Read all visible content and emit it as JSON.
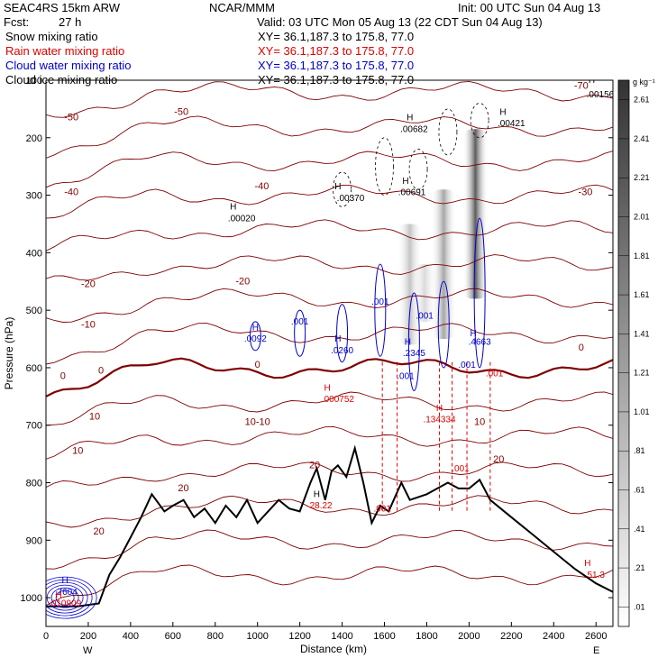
{
  "header": {
    "model": "SEAC4RS 15km ARW",
    "org": "NCAR/MMM",
    "init": "Init: 00 UTC Sun 04 Aug 13",
    "fcst_label": "Fcst:",
    "fcst_value": "27 h",
    "valid": "Valid: 03 UTC Mon 05 Aug 13 (22 CDT Sun 04 Aug 13)"
  },
  "legend": [
    {
      "label": "Snow mixing ratio",
      "xy": "XY=  36.1,187.3 to 175.8, 77.0",
      "color": "#000000"
    },
    {
      "label": "Rain water mixing ratio",
      "xy": "XY=  36.1,187.3 to 175.8, 77.0",
      "color": "#dd0000"
    },
    {
      "label": "Cloud water mixing ratio",
      "xy": "XY=  36.1,187.3 to 175.8, 77.0",
      "color": "#0000cc"
    },
    {
      "label": "Cloud ice mixing ratio",
      "xy": "XY=  36.1,187.3 to 175.8, 77.0",
      "color": "#000000"
    }
  ],
  "chart_data": {
    "type": "cross-section",
    "xlabel": "Distance (km)",
    "ylabel": "Pressure (hPa)",
    "xlim": [
      0,
      2680
    ],
    "ylim": [
      1050,
      100
    ],
    "x_ticks": [
      0,
      200,
      400,
      600,
      800,
      1000,
      1200,
      1400,
      1600,
      1800,
      2000,
      2200,
      2400,
      2600
    ],
    "y_ticks": [
      100,
      200,
      300,
      400,
      500,
      600,
      700,
      800,
      900,
      1000
    ],
    "west_label": "W",
    "east_label": "E",
    "colorbar": {
      "unit": "g kg⁻¹",
      "ticks": [
        ".01",
        ".21",
        ".41",
        ".61",
        ".81",
        "1.01",
        "1.21",
        "1.41",
        "1.61",
        "1.81",
        "2.01",
        "2.21",
        "2.41",
        "2.61"
      ],
      "low_color": "#ffffff",
      "high_color": "#333333"
    },
    "terrain_pressure": [
      [
        0,
        1015
      ],
      [
        150,
        1015
      ],
      [
        250,
        1010
      ],
      [
        300,
        960
      ],
      [
        350,
        930
      ],
      [
        400,
        895
      ],
      [
        450,
        860
      ],
      [
        500,
        820
      ],
      [
        560,
        850
      ],
      [
        600,
        840
      ],
      [
        650,
        830
      ],
      [
        700,
        860
      ],
      [
        750,
        845
      ],
      [
        800,
        870
      ],
      [
        850,
        840
      ],
      [
        900,
        860
      ],
      [
        950,
        830
      ],
      [
        1000,
        870
      ],
      [
        1050,
        850
      ],
      [
        1100,
        830
      ],
      [
        1150,
        845
      ],
      [
        1200,
        850
      ],
      [
        1250,
        800
      ],
      [
        1280,
        775
      ],
      [
        1320,
        830
      ],
      [
        1350,
        780
      ],
      [
        1380,
        770
      ],
      [
        1420,
        790
      ],
      [
        1460,
        740
      ],
      [
        1500,
        800
      ],
      [
        1540,
        870
      ],
      [
        1580,
        840
      ],
      [
        1620,
        850
      ],
      [
        1680,
        800
      ],
      [
        1720,
        830
      ],
      [
        1800,
        820
      ],
      [
        1850,
        810
      ],
      [
        1900,
        800
      ],
      [
        1950,
        810
      ],
      [
        2000,
        810
      ],
      [
        2050,
        795
      ],
      [
        2100,
        830
      ],
      [
        2200,
        860
      ],
      [
        2300,
        890
      ],
      [
        2400,
        920
      ],
      [
        2500,
        950
      ],
      [
        2600,
        975
      ],
      [
        2680,
        990
      ]
    ],
    "isotherm_labels": [
      {
        "x": 120,
        "p": 170,
        "t": "-50"
      },
      {
        "x": 120,
        "p": 300,
        "t": "-40"
      },
      {
        "x": 200,
        "p": 460,
        "t": "-20"
      },
      {
        "x": 200,
        "p": 530,
        "t": "-10"
      },
      {
        "x": 80,
        "p": 620,
        "t": "0"
      },
      {
        "x": 260,
        "p": 610,
        "t": "0"
      },
      {
        "x": 230,
        "p": 690,
        "t": "10"
      },
      {
        "x": 150,
        "p": 750,
        "t": "10"
      },
      {
        "x": 640,
        "p": 160,
        "t": "-50"
      },
      {
        "x": 1020,
        "p": 290,
        "t": "-40"
      },
      {
        "x": 930,
        "p": 455,
        "t": "-20"
      },
      {
        "x": 1000,
        "p": 600,
        "t": "0"
      },
      {
        "x": 1000,
        "p": 700,
        "t": "10-10"
      },
      {
        "x": 1270,
        "p": 775,
        "t": "20"
      },
      {
        "x": 650,
        "p": 815,
        "t": "20"
      },
      {
        "x": 250,
        "p": 890,
        "t": "20"
      },
      {
        "x": 2050,
        "p": 700,
        "t": "10"
      },
      {
        "x": 2140,
        "p": 765,
        "t": "20"
      },
      {
        "x": 2530,
        "p": 570,
        "t": "0"
      },
      {
        "x": 2550,
        "p": 300,
        "t": "-30"
      },
      {
        "x": 2530,
        "p": 115,
        "t": "-70"
      }
    ],
    "snow_columns": [
      {
        "x": 1720,
        "ptop": 350,
        "pbot": 560,
        "peak": 0.8
      },
      {
        "x": 1880,
        "ptop": 290,
        "pbot": 550,
        "peak": 1.2
      },
      {
        "x": 2030,
        "ptop": 185,
        "pbot": 480,
        "peak": 2.2
      },
      {
        "x": 1790,
        "ptop": 420,
        "pbot": 520,
        "peak": 0.5
      }
    ],
    "labels": [
      {
        "x": 2620,
        "p": 130,
        "t": ".00156",
        "color": "#000000"
      },
      {
        "x": 2580,
        "p": 105,
        "t": "H",
        "color": "#000000"
      },
      {
        "x": 2200,
        "p": 180,
        "t": ".00421",
        "color": "#000000"
      },
      {
        "x": 2160,
        "p": 160,
        "t": "H",
        "color": "#000000"
      },
      {
        "x": 1740,
        "p": 190,
        "t": ".00682",
        "color": "#000000"
      },
      {
        "x": 1720,
        "p": 170,
        "t": "H",
        "color": "#000000"
      },
      {
        "x": 1440,
        "p": 310,
        "t": ".00370",
        "color": "#000000"
      },
      {
        "x": 1380,
        "p": 290,
        "t": "H",
        "color": "#000000"
      },
      {
        "x": 1730,
        "p": 300,
        "t": ".00691",
        "color": "#000000"
      },
      {
        "x": 1700,
        "p": 280,
        "t": "H",
        "color": "#000000"
      },
      {
        "x": 925,
        "p": 345,
        "t": ".00020",
        "color": "#000000"
      },
      {
        "x": 885,
        "p": 325,
        "t": "H",
        "color": "#000000"
      },
      {
        "x": 1580,
        "p": 490,
        "t": ".001",
        "color": "#0000cc"
      },
      {
        "x": 1790,
        "p": 515,
        "t": ".001",
        "color": "#0000cc"
      },
      {
        "x": 1200,
        "p": 525,
        "t": ".001",
        "color": "#0000cc"
      },
      {
        "x": 990,
        "p": 555,
        "t": ".0092",
        "color": "#0000cc"
      },
      {
        "x": 990,
        "p": 535,
        "t": "H",
        "color": "#0000cc"
      },
      {
        "x": 1400,
        "p": 575,
        "t": ".0260",
        "color": "#0000cc"
      },
      {
        "x": 1380,
        "p": 555,
        "t": "H",
        "color": "#0000cc"
      },
      {
        "x": 1740,
        "p": 580,
        "t": ".2345",
        "color": "#0000cc"
      },
      {
        "x": 1710,
        "p": 560,
        "t": "H",
        "color": "#0000cc"
      },
      {
        "x": 2050,
        "p": 560,
        "t": ".4663",
        "color": "#0000cc"
      },
      {
        "x": 2020,
        "p": 545,
        "t": "H",
        "color": "#0000cc"
      },
      {
        "x": 1700,
        "p": 620,
        "t": ".001",
        "color": "#0000cc"
      },
      {
        "x": 1990,
        "p": 600,
        "t": ".001",
        "color": "#0000cc"
      },
      {
        "x": 2120,
        "p": 615,
        "t": ".001",
        "color": "#dd0000"
      },
      {
        "x": 1330,
        "p": 640,
        "t": "H",
        "color": "#dd0000"
      },
      {
        "x": 1380,
        "p": 660,
        "t": ".000752",
        "color": "#dd0000"
      },
      {
        "x": 1860,
        "p": 675,
        "t": "H",
        "color": "#dd0000"
      },
      {
        "x": 1860,
        "p": 695,
        "t": ".134334",
        "color": "#dd0000"
      },
      {
        "x": 1960,
        "p": 780,
        "t": ".001",
        "color": "#dd0000"
      },
      {
        "x": 1590,
        "p": 850,
        "t": ".001",
        "color": "#dd0000"
      },
      {
        "x": 1280,
        "p": 825,
        "t": "H",
        "color": "#000000"
      },
      {
        "x": 1300,
        "p": 845,
        "t": "28.22",
        "color": "#dd0000"
      },
      {
        "x": 2560,
        "p": 945,
        "t": "H",
        "color": "#dd0000"
      },
      {
        "x": 2600,
        "p": 965,
        "t": "51.3",
        "color": "#dd0000"
      },
      {
        "x": 90,
        "p": 975,
        "t": "H",
        "color": "#0000cc"
      },
      {
        "x": 95,
        "p": 995,
        "t": ".7604",
        "color": "#0000cc"
      },
      {
        "x": 60,
        "p": 1000,
        "t": "H",
        "color": "#dd0000"
      },
      {
        "x": 90,
        "p": 1015,
        "t": ".010909",
        "color": "#dd0000"
      }
    ]
  }
}
